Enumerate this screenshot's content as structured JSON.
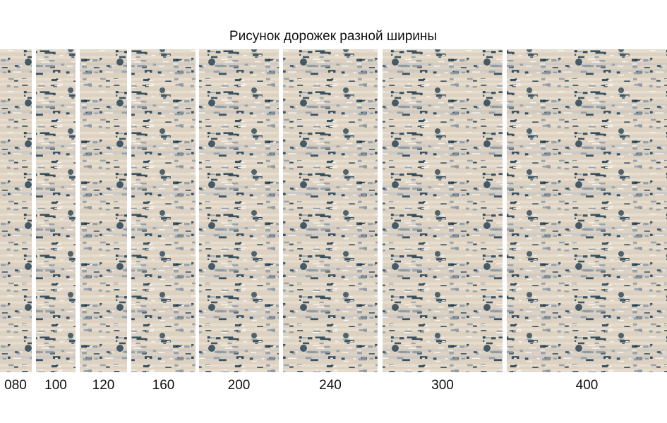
{
  "title": "Рисунок дорожек разной ширины",
  "panels": [
    {
      "label": "080"
    },
    {
      "label": "100"
    },
    {
      "label": "120"
    },
    {
      "label": "160"
    },
    {
      "label": "200"
    },
    {
      "label": "240"
    },
    {
      "label": "300"
    },
    {
      "label": "400"
    }
  ]
}
